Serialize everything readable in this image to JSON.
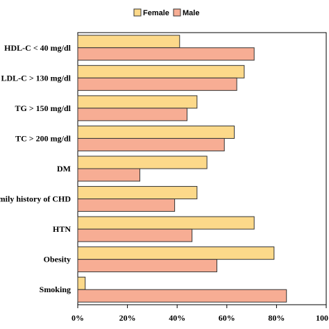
{
  "chart_data": {
    "type": "bar",
    "orientation": "horizontal",
    "categories": [
      "HDL-C < 40 mg/dl",
      "LDL-C > 130 mg/dl",
      "TG > 150 mg/dl",
      "TC > 200 mg/dl",
      "DM",
      "Family history of CHD",
      "HTN",
      "Obesity",
      "Smoking"
    ],
    "series": [
      {
        "name": "Female",
        "color": "#fcd98a",
        "values": [
          41,
          67,
          48,
          63,
          52,
          48,
          71,
          79,
          3
        ]
      },
      {
        "name": "Male",
        "color": "#f7ad94",
        "values": [
          71,
          64,
          44,
          59,
          25,
          39,
          46,
          56,
          84
        ]
      }
    ],
    "xlim": [
      0,
      100
    ],
    "xticks": [
      "0%",
      "20%",
      "40%",
      "60%",
      "80%",
      "100%"
    ],
    "title": "",
    "xlabel": "",
    "ylabel": "",
    "legend_position": "top-center",
    "grid": false
  }
}
